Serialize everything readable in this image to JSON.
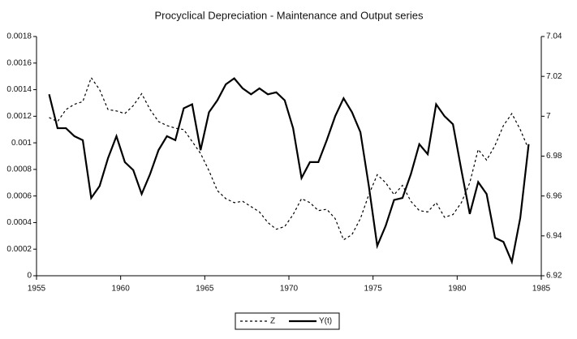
{
  "chart_data": {
    "type": "line",
    "title": "Procyclical Depreciation - Maintenance and Output series",
    "x": [
      1955.75,
      1956.25,
      1956.75,
      1957.25,
      1957.75,
      1958.25,
      1958.75,
      1959.25,
      1959.75,
      1960.25,
      1960.75,
      1961.25,
      1961.75,
      1962.25,
      1962.75,
      1963.25,
      1963.75,
      1964.25,
      1964.75,
      1965.25,
      1965.75,
      1966.25,
      1966.75,
      1967.25,
      1967.75,
      1968.25,
      1968.75,
      1969.25,
      1969.75,
      1970.25,
      1970.75,
      1971.25,
      1971.75,
      1972.25,
      1972.75,
      1973.25,
      1973.75,
      1974.25,
      1974.75,
      1975.25,
      1975.75,
      1976.25,
      1976.75,
      1977.25,
      1977.75,
      1978.25,
      1978.75,
      1979.25,
      1979.75,
      1980.25,
      1980.75,
      1981.25,
      1981.75,
      1982.25,
      1982.75,
      1983.25,
      1983.75,
      1984.25
    ],
    "series": [
      {
        "name": "Z",
        "color": "#000000",
        "dash": true,
        "axis": "y",
        "values": [
          0.00119,
          0.00116,
          0.00125,
          0.00129,
          0.00131,
          0.00149,
          0.0014,
          0.00125,
          0.00124,
          0.00122,
          0.00128,
          0.00137,
          0.00125,
          0.00116,
          0.00113,
          0.00111,
          0.0011,
          0.00101,
          0.00092,
          0.00079,
          0.00064,
          0.00058,
          0.00055,
          0.00056,
          0.00052,
          0.00048,
          0.0004,
          0.00035,
          0.00037,
          0.00046,
          0.00058,
          0.00055,
          0.00049,
          0.0005,
          0.00043,
          0.00027,
          0.00031,
          0.00043,
          0.00061,
          0.00076,
          0.0007,
          0.00061,
          0.00068,
          0.00056,
          0.00049,
          0.00048,
          0.00055,
          0.00044,
          0.00046,
          0.00055,
          0.0007,
          0.00095,
          0.00087,
          0.00098,
          0.00113,
          0.00122,
          0.0011,
          0.00095
        ]
      },
      {
        "name": "Y(t)",
        "color": "#000000",
        "dash": false,
        "axis": "y2",
        "values": [
          7.011,
          6.994,
          6.994,
          6.99,
          6.988,
          6.959,
          6.965,
          6.979,
          6.99,
          6.977,
          6.973,
          6.961,
          6.971,
          6.983,
          6.99,
          6.988,
          7.004,
          7.006,
          6.983,
          7.002,
          7.008,
          7.016,
          7.019,
          7.014,
          7.011,
          7.014,
          7.011,
          7.012,
          7.008,
          6.994,
          6.969,
          6.977,
          6.977,
          6.988,
          7,
          7.009,
          7.002,
          6.992,
          6.965,
          6.935,
          6.945,
          6.958,
          6.959,
          6.971,
          6.986,
          6.981,
          7.006,
          7,
          6.996,
          6.973,
          6.951,
          6.967,
          6.961,
          6.939,
          6.937,
          6.927,
          6.949,
          6.986
        ]
      }
    ],
    "xlim": [
      1955,
      1985
    ],
    "xticks": [
      1955,
      1960,
      1965,
      1970,
      1975,
      1980,
      1985
    ],
    "ylim": [
      0,
      0.0018
    ],
    "yticks": [
      0,
      0.0002,
      0.0004,
      0.0006,
      0.0008,
      0.001,
      0.0012,
      0.0014,
      0.0016,
      0.0018
    ],
    "y2lim": [
      6.92,
      7.04
    ],
    "y2ticks": [
      6.92,
      6.94,
      6.96,
      6.98,
      7,
      7.02,
      7.04
    ],
    "legend": "bottom"
  }
}
